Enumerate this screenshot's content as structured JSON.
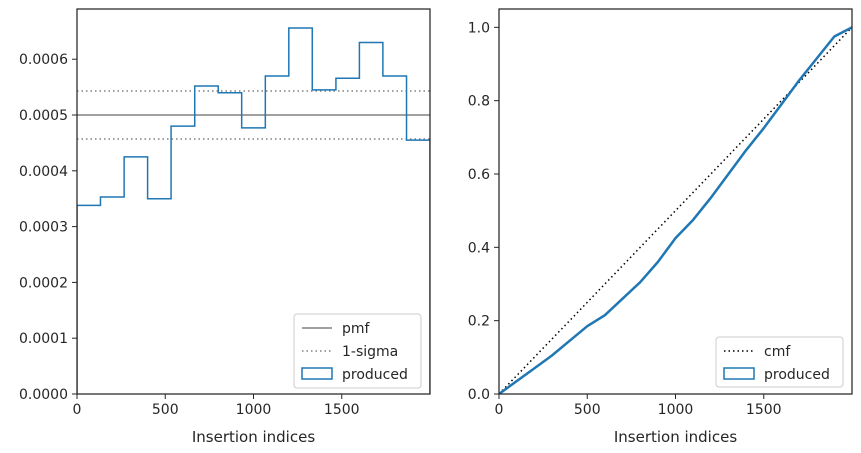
{
  "chart_data": [
    {
      "type": "histogram-step",
      "xlabel": "Insertion indices",
      "ylabel": "",
      "xlim": [
        0,
        2000
      ],
      "ylim": [
        0,
        0.00069
      ],
      "xticks": [
        0,
        500,
        1000,
        1500
      ],
      "xtick_labels": [
        "0",
        "500",
        "1000",
        "1500"
      ],
      "yticks": [
        0,
        0.0001,
        0.0002,
        0.0003,
        0.0004,
        0.0005,
        0.0006
      ],
      "ytick_labels": [
        "0.0000",
        "0.0001",
        "0.0002",
        "0.0003",
        "0.0004",
        "0.0005",
        "0.0006"
      ],
      "bin_edges": [
        0,
        133,
        267,
        400,
        533,
        667,
        800,
        933,
        1067,
        1200,
        1333,
        1467,
        1600,
        1733,
        1867,
        2000
      ],
      "series": [
        {
          "name": "produced",
          "values": [
            0.000338,
            0.000353,
            0.000425,
            0.00035,
            0.00048,
            0.000552,
            0.00054,
            0.000477,
            0.00057,
            0.000656,
            0.000545,
            0.000566,
            0.00063,
            0.00057,
            0.000455
          ],
          "color": "#1f77b4"
        }
      ],
      "reference_lines": [
        {
          "name": "pmf",
          "y": 0.0005,
          "style": "solid",
          "color": "#808080"
        },
        {
          "name": "1-sigma",
          "y": [
            0.000457,
            0.000543
          ],
          "style": "dotted",
          "color": "#808080"
        }
      ],
      "legend": {
        "placement": "lower-right",
        "entries": [
          {
            "label": "pmf",
            "kind": "line-solid",
            "color": "#808080"
          },
          {
            "label": "1-sigma",
            "kind": "line-dotted",
            "color": "#808080"
          },
          {
            "label": "produced",
            "kind": "patch",
            "color": "#1f77b4"
          }
        ]
      },
      "grid": false
    },
    {
      "type": "line",
      "xlabel": "Insertion indices",
      "ylabel": "",
      "xlim": [
        0,
        2000
      ],
      "ylim": [
        0,
        1.05
      ],
      "xticks": [
        0,
        500,
        1000,
        1500
      ],
      "xtick_labels": [
        "0",
        "500",
        "1000",
        "1500"
      ],
      "yticks": [
        0,
        0.2,
        0.4,
        0.6,
        0.8,
        1.0
      ],
      "ytick_labels": [
        "0.0",
        "0.2",
        "0.4",
        "0.6",
        "0.8",
        "1.0"
      ],
      "series": [
        {
          "name": "cmf",
          "x": [
            0,
            2000
          ],
          "y": [
            0,
            1
          ],
          "style": "dotted",
          "color": "#000000"
        },
        {
          "name": "produced",
          "x": [
            0,
            100,
            200,
            300,
            400,
            500,
            600,
            700,
            800,
            900,
            1000,
            1100,
            1200,
            1300,
            1400,
            1500,
            1600,
            1700,
            1800,
            1900,
            2000
          ],
          "y": [
            0,
            0.035,
            0.07,
            0.105,
            0.145,
            0.185,
            0.215,
            0.26,
            0.305,
            0.36,
            0.425,
            0.475,
            0.535,
            0.6,
            0.665,
            0.725,
            0.79,
            0.855,
            0.915,
            0.975,
            1.0
          ],
          "style": "solid",
          "color": "#1f77b4"
        }
      ],
      "legend": {
        "placement": "lower-right",
        "entries": [
          {
            "label": "cmf",
            "kind": "line-dotted",
            "color": "#000000"
          },
          {
            "label": "produced",
            "kind": "patch",
            "color": "#1f77b4"
          }
        ]
      },
      "grid": false
    }
  ]
}
